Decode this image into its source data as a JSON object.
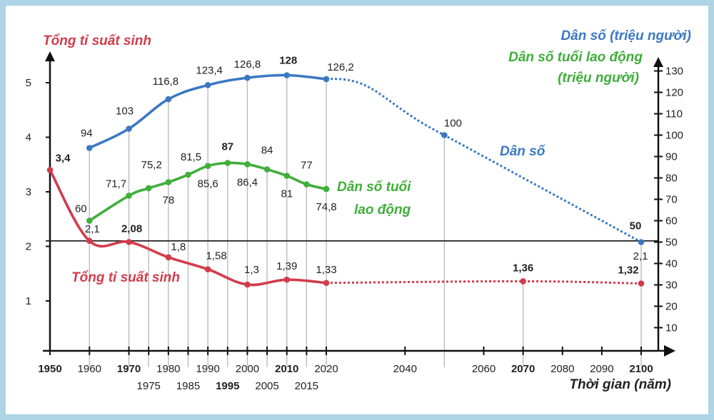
{
  "chart_data": {
    "type": "line",
    "left_axis_title": "Tổng tỉ suất sinh",
    "right_axis_title_population": "Dân số (triệu người)",
    "right_axis_title_labor_line1": "Dân số tuổi lao động",
    "right_axis_title_labor_line2": "(triệu người)",
    "xlabel": "Thời gian (năm)",
    "left_ylim": [
      0,
      5
    ],
    "left_ticks": [
      "1",
      "2",
      "3",
      "4",
      "5"
    ],
    "right_ylim": [
      0,
      130
    ],
    "right_ticks": [
      "10",
      "20",
      "30",
      "40",
      "50",
      "60",
      "70",
      "80",
      "90",
      "100",
      "110",
      "120",
      "130"
    ],
    "x_ticks": [
      {
        "year": 1950,
        "label": "1950",
        "row": 1,
        "bold": true
      },
      {
        "year": 1960,
        "label": "1960",
        "row": 1,
        "bold": false
      },
      {
        "year": 1970,
        "label": "1970",
        "row": 1,
        "bold": true
      },
      {
        "year": 1975,
        "label": "1975",
        "row": 2,
        "bold": false
      },
      {
        "year": 1980,
        "label": "1980",
        "row": 1,
        "bold": false
      },
      {
        "year": 1985,
        "label": "1985",
        "row": 2,
        "bold": false
      },
      {
        "year": 1990,
        "label": "1990",
        "row": 1,
        "bold": false
      },
      {
        "year": 1995,
        "label": "1995",
        "row": 2,
        "bold": true
      },
      {
        "year": 2000,
        "label": "2000",
        "row": 1,
        "bold": false
      },
      {
        "year": 2005,
        "label": "2005",
        "row": 2,
        "bold": false
      },
      {
        "year": 2010,
        "label": "2010",
        "row": 1,
        "bold": true
      },
      {
        "year": 2015,
        "label": "2015",
        "row": 2,
        "bold": false
      },
      {
        "year": 2020,
        "label": "2020",
        "row": 1,
        "bold": false
      },
      {
        "year": 2040,
        "label": "2040",
        "row": 1,
        "bold": false
      },
      {
        "year": 2060,
        "label": "2060",
        "row": 1,
        "bold": false
      },
      {
        "year": 2070,
        "label": "2070",
        "row": 1,
        "bold": true
      },
      {
        "year": 2080,
        "label": "2080",
        "row": 1,
        "bold": false
      },
      {
        "year": 2090,
        "label": "2090",
        "row": 1,
        "bold": false
      },
      {
        "year": 2100,
        "label": "2100",
        "row": 1,
        "bold": true
      }
    ],
    "series": [
      {
        "name": "Dân số",
        "axis": "right",
        "color": "#3b78c3",
        "points": [
          {
            "x": 1960,
            "y": 94,
            "label": "94",
            "bold": false
          },
          {
            "x": 1970,
            "y": 103,
            "label": "103",
            "bold": false
          },
          {
            "x": 1980,
            "y": 116.8,
            "label": "116,8",
            "bold": false
          },
          {
            "x": 1990,
            "y": 123.4,
            "label": "123,4",
            "bold": false
          },
          {
            "x": 2000,
            "y": 126.8,
            "label": "126,8",
            "bold": false
          },
          {
            "x": 2010,
            "y": 128,
            "label": "128",
            "bold": true
          },
          {
            "x": 2020,
            "y": 126.2,
            "label": "126,2",
            "bold": false
          }
        ],
        "projection": [
          {
            "x": 2020,
            "y": 126.2
          },
          {
            "x": 2050,
            "y": 100,
            "label": "100",
            "bold": false
          },
          {
            "x": 2100,
            "y": 50,
            "label": "50",
            "bold": true
          }
        ]
      },
      {
        "name": "Dân số tuổi lao động",
        "axis": "right",
        "color": "#3fae3a",
        "points": [
          {
            "x": 1960,
            "y": 60,
            "label": "60",
            "bold": false
          },
          {
            "x": 1970,
            "y": 71.7,
            "label": "71,7",
            "bold": false
          },
          {
            "x": 1975,
            "y": 75.2,
            "label": "75,2",
            "bold": false
          },
          {
            "x": 1980,
            "y": 78,
            "label": "78",
            "bold": false
          },
          {
            "x": 1985,
            "y": 81.5,
            "label": "81,5",
            "bold": false
          },
          {
            "x": 1990,
            "y": 85.6,
            "label": "85,6",
            "bold": false
          },
          {
            "x": 1995,
            "y": 87,
            "label": "87",
            "bold": true
          },
          {
            "x": 2000,
            "y": 86.4,
            "label": "86,4",
            "bold": false
          },
          {
            "x": 2005,
            "y": 84,
            "label": "84",
            "bold": false
          },
          {
            "x": 2010,
            "y": 81,
            "label": "81",
            "bold": false
          },
          {
            "x": 2015,
            "y": 77,
            "label": "77",
            "bold": false
          },
          {
            "x": 2020,
            "y": 74.8,
            "label": "74,8",
            "bold": false
          }
        ]
      },
      {
        "name": "Tổng tỉ suất sinh",
        "axis": "left",
        "color": "#d23c4b",
        "points": [
          {
            "x": 1950,
            "y": 3.4,
            "label": "3,4",
            "bold": true
          },
          {
            "x": 1960,
            "y": 2.1,
            "label": "2,1",
            "bold": false
          },
          {
            "x": 1970,
            "y": 2.08,
            "label": "2,08",
            "bold": true
          },
          {
            "x": 1980,
            "y": 1.8,
            "label": "1,8",
            "bold": false
          },
          {
            "x": 1990,
            "y": 1.58,
            "label": "1,58",
            "bold": false
          },
          {
            "x": 2000,
            "y": 1.3,
            "label": "1,3",
            "bold": false
          },
          {
            "x": 2010,
            "y": 1.39,
            "label": "1,39",
            "bold": false
          },
          {
            "x": 2020,
            "y": 1.33,
            "label": "1,33",
            "bold": false
          }
        ],
        "projection": [
          {
            "x": 2020,
            "y": 1.33
          },
          {
            "x": 2070,
            "y": 1.36,
            "label": "1,36",
            "bold": true
          },
          {
            "x": 2100,
            "y": 1.32,
            "label": "1,32",
            "bold": true
          }
        ]
      }
    ],
    "reference_line": {
      "y_left": 2.1,
      "label": "2,1"
    },
    "inline_labels": {
      "population": "Dân số",
      "labor_line1": "Dân số tuổi",
      "labor_line2": "lao động",
      "fertility": "Tổng tỉ suất sinh"
    }
  }
}
